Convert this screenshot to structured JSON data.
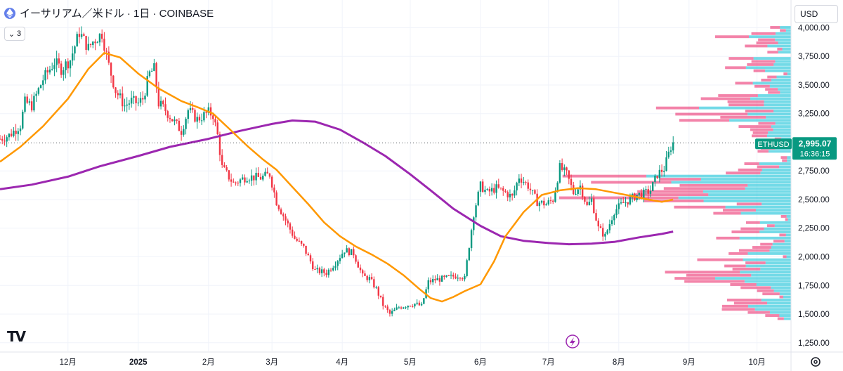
{
  "header": {
    "title": "イーサリアム／米ドル · 1日 · COINBASE",
    "indicators_collapsed_count": "3",
    "currency": "USD"
  },
  "price_tag": {
    "symbol": "ETHUSD",
    "price": "2,995.07",
    "countdown": "16:36:15"
  },
  "colors": {
    "up": "#089981",
    "down": "#f23645",
    "ma_fast": "#ff9800",
    "ma_slow": "#9c27b0",
    "vp_up": "#00bcd4",
    "vp_down": "#e91e63",
    "tag_bg": "#089981"
  },
  "chart_data": {
    "type": "candlestick",
    "x_tick_labels": [
      "12月",
      "2025",
      "2月",
      "3月",
      "4月",
      "5月",
      "6月",
      "7月",
      "8月",
      "9月",
      "10月"
    ],
    "y_tick_labels": [
      "4,000.00",
      "3,750.00",
      "3,500.00",
      "3,250.00",
      "2,750.00",
      "2,500.00",
      "2,250.00",
      "2,000.00",
      "1,750.00",
      "1,500.00",
      "1,250.00"
    ],
    "y_ticks": [
      4000,
      3750,
      3500,
      3250,
      2750,
      2500,
      2250,
      2000,
      1750,
      1500,
      1250
    ],
    "x_ticks": [
      "2024-12-01",
      "2025-01-01",
      "2025-02-01",
      "2025-03-01",
      "2025-04-01",
      "2025-05-01",
      "2025-06-01",
      "2025-07-01",
      "2025-08-01",
      "2025-09-01",
      "2025-10-01"
    ],
    "ylim": [
      1175,
      4150
    ],
    "xlim": [
      "2024-11-01",
      "2025-10-16"
    ],
    "last_price": 2995.07,
    "close_path": [
      [
        "2024-11-01",
        3030
      ],
      [
        "2024-11-05",
        3060
      ],
      [
        "2024-11-10",
        3150
      ],
      [
        "2024-11-12",
        3350
      ],
      [
        "2024-11-15",
        3320
      ],
      [
        "2024-11-20",
        3550
      ],
      [
        "2024-11-25",
        3700
      ],
      [
        "2024-11-28",
        3640
      ],
      [
        "2024-12-02",
        3720
      ],
      [
        "2024-12-06",
        3960
      ],
      [
        "2024-12-10",
        3820
      ],
      [
        "2024-12-12",
        3880
      ],
      [
        "2024-12-16",
        3950
      ],
      [
        "2024-12-19",
        3670
      ],
      [
        "2024-12-22",
        3450
      ],
      [
        "2024-12-26",
        3320
      ],
      [
        "2024-12-29",
        3360
      ],
      [
        "2025-01-01",
        3340
      ],
      [
        "2025-01-03",
        3380
      ],
      [
        "2025-01-06",
        3600
      ],
      [
        "2025-01-08",
        3640
      ],
      [
        "2025-01-10",
        3340
      ],
      [
        "2025-01-13",
        3280
      ],
      [
        "2025-01-16",
        3200
      ],
      [
        "2025-01-20",
        3100
      ],
      [
        "2025-01-23",
        3280
      ],
      [
        "2025-01-27",
        3200
      ],
      [
        "2025-02-01",
        3260
      ],
      [
        "2025-02-03",
        3240
      ],
      [
        "2025-02-05",
        3060
      ],
      [
        "2025-02-07",
        2780
      ],
      [
        "2025-02-12",
        2640
      ],
      [
        "2025-02-18",
        2700
      ],
      [
        "2025-02-24",
        2690
      ],
      [
        "2025-02-28",
        2720
      ],
      [
        "2025-03-03",
        2480
      ],
      [
        "2025-03-07",
        2320
      ],
      [
        "2025-03-11",
        2160
      ],
      [
        "2025-03-15",
        2080
      ],
      [
        "2025-03-20",
        1880
      ],
      [
        "2025-03-25",
        1860
      ],
      [
        "2025-03-29",
        1950
      ],
      [
        "2025-04-02",
        2060
      ],
      [
        "2025-04-06",
        2030
      ],
      [
        "2025-04-08",
        1930
      ],
      [
        "2025-04-10",
        1830
      ],
      [
        "2025-04-13",
        1810
      ],
      [
        "2025-04-16",
        1720
      ],
      [
        "2025-04-19",
        1580
      ],
      [
        "2025-04-22",
        1500
      ],
      [
        "2025-04-26",
        1560
      ],
      [
        "2025-04-30",
        1580
      ],
      [
        "2025-05-03",
        1590
      ],
      [
        "2025-05-06",
        1570
      ],
      [
        "2025-05-09",
        1780
      ],
      [
        "2025-05-12",
        1800
      ],
      [
        "2025-05-16",
        1810
      ],
      [
        "2025-05-20",
        1830
      ],
      [
        "2025-05-23",
        1840
      ],
      [
        "2025-05-25",
        1810
      ],
      [
        "2025-05-27",
        2100
      ],
      [
        "2025-05-29",
        2380
      ],
      [
        "2025-06-01",
        2620
      ],
      [
        "2025-06-04",
        2560
      ],
      [
        "2025-06-08",
        2600
      ],
      [
        "2025-06-12",
        2560
      ],
      [
        "2025-06-15",
        2520
      ],
      [
        "2025-06-18",
        2700
      ],
      [
        "2025-06-22",
        2620
      ],
      [
        "2025-06-26",
        2480
      ],
      [
        "2025-06-30",
        2460
      ],
      [
        "2025-07-03",
        2500
      ],
      [
        "2025-07-06",
        2780
      ],
      [
        "2025-07-09",
        2720
      ],
      [
        "2025-07-12",
        2560
      ],
      [
        "2025-07-15",
        2620
      ],
      [
        "2025-07-18",
        2440
      ],
      [
        "2025-07-20",
        2500
      ],
      [
        "2025-07-23",
        2250
      ],
      [
        "2025-07-26",
        2180
      ],
      [
        "2025-07-30",
        2400
      ],
      [
        "2025-08-03",
        2470
      ],
      [
        "2025-08-06",
        2500
      ],
      [
        "2025-08-09",
        2540
      ],
      [
        "2025-08-12",
        2550
      ],
      [
        "2025-08-15",
        2580
      ],
      [
        "2025-08-18",
        2720
      ],
      [
        "2025-08-21",
        2770
      ],
      [
        "2025-08-24",
        2960
      ],
      [
        "2025-08-25",
        2995
      ]
    ],
    "ma_fast_path": [
      [
        "2024-11-01",
        2830
      ],
      [
        "2024-11-10",
        2960
      ],
      [
        "2024-11-20",
        3140
      ],
      [
        "2024-12-01",
        3380
      ],
      [
        "2024-12-10",
        3640
      ],
      [
        "2024-12-17",
        3780
      ],
      [
        "2024-12-24",
        3740
      ],
      [
        "2025-01-01",
        3600
      ],
      [
        "2025-01-10",
        3470
      ],
      [
        "2025-01-20",
        3360
      ],
      [
        "2025-01-28",
        3300
      ],
      [
        "2025-02-03",
        3250
      ],
      [
        "2025-02-10",
        3120
      ],
      [
        "2025-02-18",
        2970
      ],
      [
        "2025-02-25",
        2850
      ],
      [
        "2025-03-03",
        2760
      ],
      [
        "2025-03-10",
        2610
      ],
      [
        "2025-03-17",
        2460
      ],
      [
        "2025-03-24",
        2300
      ],
      [
        "2025-03-31",
        2180
      ],
      [
        "2025-04-07",
        2090
      ],
      [
        "2025-04-14",
        2020
      ],
      [
        "2025-04-21",
        1940
      ],
      [
        "2025-04-28",
        1840
      ],
      [
        "2025-05-05",
        1720
      ],
      [
        "2025-05-10",
        1640
      ],
      [
        "2025-05-15",
        1610
      ],
      [
        "2025-05-20",
        1650
      ],
      [
        "2025-05-25",
        1700
      ],
      [
        "2025-06-01",
        1760
      ],
      [
        "2025-06-07",
        1960
      ],
      [
        "2025-06-12",
        2180
      ],
      [
        "2025-06-20",
        2390
      ],
      [
        "2025-06-28",
        2540
      ],
      [
        "2025-07-06",
        2580
      ],
      [
        "2025-07-14",
        2600
      ],
      [
        "2025-07-22",
        2590
      ],
      [
        "2025-07-30",
        2560
      ],
      [
        "2025-08-07",
        2530
      ],
      [
        "2025-08-14",
        2500
      ],
      [
        "2025-08-20",
        2480
      ],
      [
        "2025-08-25",
        2500
      ]
    ],
    "ma_slow_path": [
      [
        "2024-11-01",
        2590
      ],
      [
        "2024-11-15",
        2630
      ],
      [
        "2024-12-01",
        2700
      ],
      [
        "2024-12-15",
        2790
      ],
      [
        "2025-01-01",
        2880
      ],
      [
        "2025-01-15",
        2960
      ],
      [
        "2025-02-01",
        3030
      ],
      [
        "2025-02-15",
        3100
      ],
      [
        "2025-03-01",
        3160
      ],
      [
        "2025-03-10",
        3190
      ],
      [
        "2025-03-20",
        3180
      ],
      [
        "2025-03-31",
        3110
      ],
      [
        "2025-04-10",
        3000
      ],
      [
        "2025-04-20",
        2880
      ],
      [
        "2025-05-01",
        2720
      ],
      [
        "2025-05-10",
        2580
      ],
      [
        "2025-05-20",
        2420
      ],
      [
        "2025-06-01",
        2270
      ],
      [
        "2025-06-10",
        2180
      ],
      [
        "2025-06-20",
        2140
      ],
      [
        "2025-07-01",
        2120
      ],
      [
        "2025-07-10",
        2110
      ],
      [
        "2025-07-20",
        2115
      ],
      [
        "2025-07-30",
        2130
      ],
      [
        "2025-08-10",
        2170
      ],
      [
        "2025-08-20",
        2200
      ],
      [
        "2025-08-25",
        2220
      ]
    ]
  }
}
